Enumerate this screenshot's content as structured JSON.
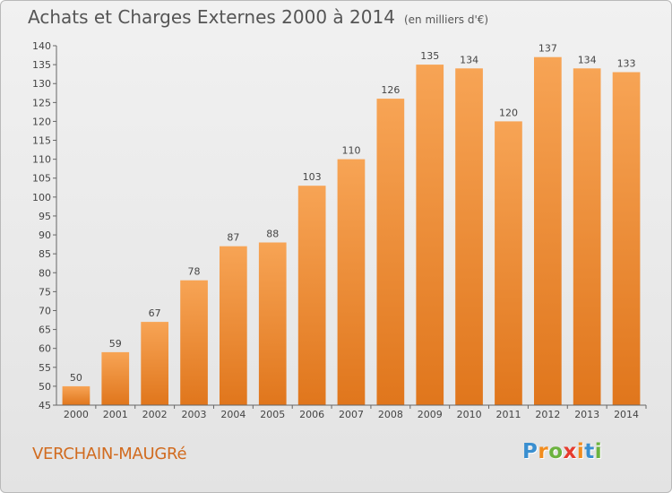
{
  "chart_data": {
    "type": "bar",
    "title": "Achats et Charges Externes 2000 à 2014",
    "subtitle": "(en milliers d'€)",
    "categories": [
      "2000",
      "2001",
      "2002",
      "2003",
      "2004",
      "2005",
      "2006",
      "2007",
      "2008",
      "2009",
      "2010",
      "2011",
      "2012",
      "2013",
      "2014"
    ],
    "values": [
      50,
      59,
      67,
      78,
      87,
      88,
      103,
      110,
      126,
      135,
      134,
      120,
      137,
      134,
      133
    ],
    "ylim": [
      45,
      140
    ],
    "ytick_step": 5,
    "grid": false,
    "bar_color_top": "#f7a455",
    "bar_color_bottom": "#e0761c",
    "commune": "VERCHAIN-MAUGRé"
  },
  "brand": {
    "letters": [
      "P",
      "r",
      "o",
      "x",
      "i",
      "t",
      "i"
    ],
    "colors": [
      "#3a8fd0",
      "#f28c1e",
      "#6cb33f",
      "#e63b2e",
      "#f28c1e",
      "#3a8fd0",
      "#6cb33f"
    ]
  }
}
